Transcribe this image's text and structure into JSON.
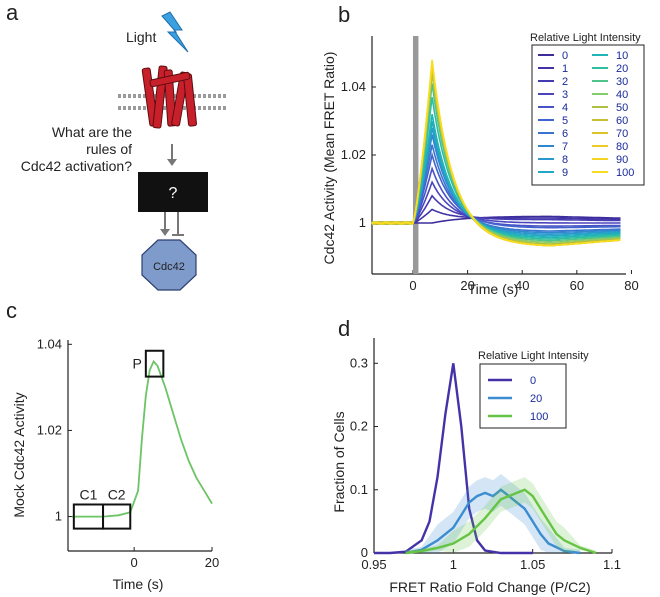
{
  "panel_a": {
    "letter": "a",
    "light_label": "Light",
    "question": [
      "What are the",
      "rules of",
      "Cdc42 activation?"
    ],
    "box_label": "?",
    "target_label": "Cdc42",
    "colors": {
      "receptor": "#c8202a",
      "box": "#111111",
      "target": "#7e9bcb",
      "bolt": "#3aa0e0"
    },
    "icons": [
      "lightning-bolt-icon",
      "membrane-receptor-icon",
      "octagon-icon"
    ]
  },
  "chart_data": [
    {
      "id": "b",
      "letter": "b",
      "type": "line",
      "title": "",
      "xlabel": "Time (s)",
      "ylabel": "Cdc42 Activity (Mean FRET Ratio)",
      "xlim": [
        -15,
        78
      ],
      "ylim": [
        0.985,
        1.055
      ],
      "xticks": [
        0,
        20,
        40,
        60,
        80
      ],
      "xtick_labels": [
        "0",
        "20",
        "40",
        "60",
        "80"
      ],
      "yticks": [
        1,
        1.02,
        1.04
      ],
      "ytick_labels": [
        "1",
        "1.02",
        "1.04"
      ],
      "stim_window": [
        0,
        2
      ],
      "legend_title": "Relative Light Intensity",
      "legend_position": "top-right",
      "series": [
        {
          "name": "0",
          "peak": 1.0,
          "trough": 1.002,
          "color": "#3c2d9a"
        },
        {
          "name": "1",
          "peak": 1.004,
          "trough": 1.0015,
          "color": "#4233a6"
        },
        {
          "name": "2",
          "peak": 1.008,
          "trough": 1.001,
          "color": "#463ab2"
        },
        {
          "name": "3",
          "peak": 1.012,
          "trough": 1.0,
          "color": "#4a44be"
        },
        {
          "name": "4",
          "peak": 1.016,
          "trough": 0.999,
          "color": "#4852c6"
        },
        {
          "name": "5",
          "peak": 1.02,
          "trough": 0.9985,
          "color": "#4262cc"
        },
        {
          "name": "6",
          "peak": 1.023,
          "trough": 0.9975,
          "color": "#3a74cf"
        },
        {
          "name": "7",
          "peak": 1.026,
          "trough": 0.997,
          "color": "#3286cf"
        },
        {
          "name": "8",
          "peak": 1.028,
          "trough": 0.9965,
          "color": "#2a98cc"
        },
        {
          "name": "9",
          "peak": 1.03,
          "trough": 0.996,
          "color": "#22a8c4"
        },
        {
          "name": "10",
          "peak": 1.032,
          "trough": 0.9955,
          "color": "#20b4b6"
        },
        {
          "name": "20",
          "peak": 1.037,
          "trough": 0.995,
          "color": "#2ebea2"
        },
        {
          "name": "30",
          "peak": 1.041,
          "trough": 0.9945,
          "color": "#4ec48a"
        },
        {
          "name": "40",
          "peak": 1.044,
          "trough": 0.994,
          "color": "#86cc6a"
        },
        {
          "name": "50",
          "peak": 1.045,
          "trough": 0.9935,
          "color": "#b0c040"
        },
        {
          "name": "60",
          "peak": 1.046,
          "trough": 0.993,
          "color": "#c8c030"
        },
        {
          "name": "70",
          "peak": 1.0465,
          "trough": 0.993,
          "color": "#dcc428"
        },
        {
          "name": "80",
          "peak": 1.047,
          "trough": 0.993,
          "color": "#eccc24"
        },
        {
          "name": "90",
          "peak": 1.0475,
          "trough": 0.993,
          "color": "#f4d422"
        },
        {
          "name": "100",
          "peak": 1.048,
          "trough": 0.993,
          "color": "#f8dc20"
        }
      ]
    },
    {
      "id": "c",
      "letter": "c",
      "type": "line",
      "title": "",
      "xlabel": "Time (s)",
      "ylabel": "Mock Cdc42 Activity",
      "xlim": [
        -17,
        20
      ],
      "ylim": [
        0.992,
        1.041
      ],
      "xticks": [
        0,
        20
      ],
      "xtick_labels": [
        "0",
        "20"
      ],
      "yticks": [
        1,
        1.02,
        1.04
      ],
      "ytick_labels": [
        "1",
        "1.02",
        "1.04"
      ],
      "color": "#6cc466",
      "x": [
        -16,
        -12,
        -8,
        -4,
        -1,
        1,
        2,
        3,
        4,
        5,
        6,
        8,
        10,
        12,
        14,
        16,
        18,
        20
      ],
      "y": [
        1.0,
        1.0,
        1.0,
        1.0003,
        1.001,
        1.006,
        1.018,
        1.028,
        1.034,
        1.036,
        1.035,
        1.03,
        1.024,
        1.018,
        1.013,
        1.009,
        1.006,
        1.003
      ],
      "boxes": [
        {
          "label": "C1",
          "x0": -15.5,
          "x1": -8,
          "y0": 0.9972,
          "y1": 1.0028
        },
        {
          "label": "C2",
          "x0": -8,
          "x1": -1,
          "y0": 0.9972,
          "y1": 1.0028
        },
        {
          "label": "P",
          "x0": 3,
          "x1": 7.5,
          "y0": 1.0325,
          "y1": 1.0385
        }
      ]
    },
    {
      "id": "d",
      "letter": "d",
      "type": "line",
      "title": "",
      "xlabel": "FRET Ratio Fold Change (P/C2)",
      "ylabel": "Fraction of Cells",
      "xlim": [
        0.95,
        1.1
      ],
      "ylim": [
        0,
        0.34
      ],
      "xticks": [
        0.95,
        1,
        1.05,
        1.1
      ],
      "xtick_labels": [
        "0.95",
        "1",
        "1.05",
        "1.1"
      ],
      "yticks": [
        0,
        0.1,
        0.2,
        0.3
      ],
      "ytick_labels": [
        "0",
        "0.1",
        "0.2",
        "0.3"
      ],
      "legend_title": "Relative Light Intensity",
      "legend_position": "top-right",
      "series": [
        {
          "name": "0",
          "color": "#4433a8",
          "x": [
            0.95,
            0.96,
            0.97,
            0.98,
            0.985,
            0.99,
            0.995,
            1.0,
            1.005,
            1.01,
            1.015,
            1.02,
            1.03,
            1.04,
            1.05
          ],
          "y": [
            0,
            0,
            0.002,
            0.02,
            0.05,
            0.12,
            0.22,
            0.3,
            0.2,
            0.07,
            0.02,
            0.004,
            0,
            0,
            0
          ]
        },
        {
          "name": "20",
          "color": "#3b8cd0",
          "band": 0.025,
          "x": [
            0.97,
            0.98,
            0.99,
            1.0,
            1.005,
            1.01,
            1.015,
            1.02,
            1.025,
            1.03,
            1.035,
            1.04,
            1.045,
            1.05,
            1.055,
            1.06,
            1.07,
            1.08
          ],
          "y": [
            0,
            0.005,
            0.02,
            0.04,
            0.06,
            0.08,
            0.09,
            0.095,
            0.09,
            0.1,
            0.09,
            0.08,
            0.07,
            0.05,
            0.03,
            0.015,
            0.003,
            0
          ]
        },
        {
          "name": "100",
          "color": "#66c444",
          "band": 0.02,
          "x": [
            0.97,
            0.98,
            0.99,
            1.0,
            1.01,
            1.02,
            1.025,
            1.03,
            1.035,
            1.04,
            1.045,
            1.05,
            1.055,
            1.06,
            1.065,
            1.07,
            1.08,
            1.09
          ],
          "y": [
            0,
            0.003,
            0.008,
            0.015,
            0.03,
            0.055,
            0.07,
            0.085,
            0.09,
            0.095,
            0.1,
            0.09,
            0.07,
            0.05,
            0.03,
            0.02,
            0.008,
            0
          ]
        }
      ]
    }
  ]
}
